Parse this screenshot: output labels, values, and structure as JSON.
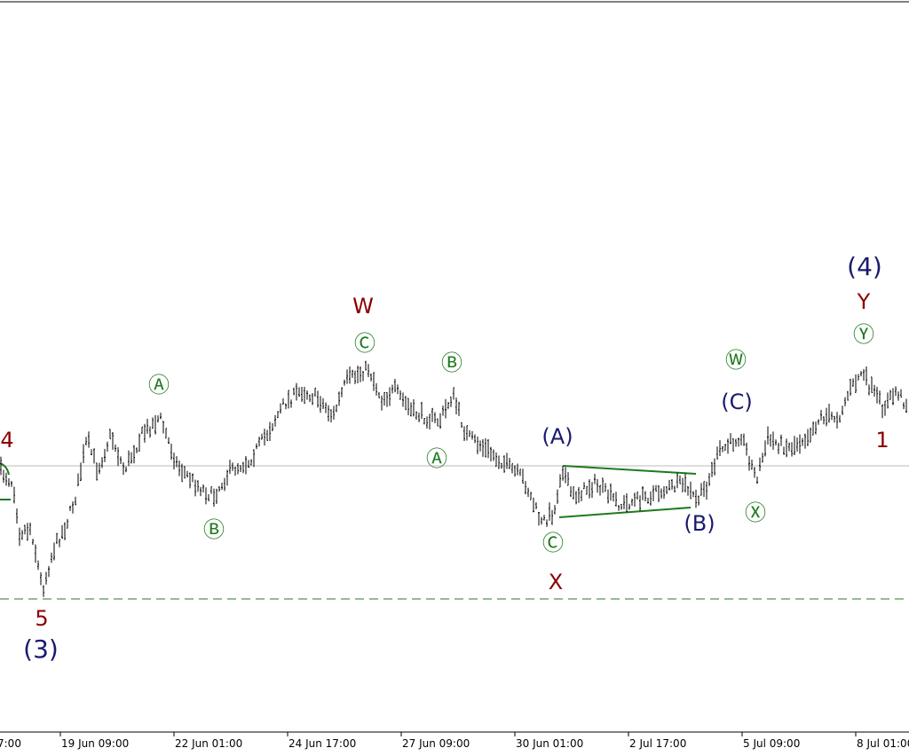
{
  "x_axis": {
    "ticks": [
      "7:00",
      "19 Jun 09:00",
      "22 Jun 01:00",
      "24 Jun 17:00",
      "27 Jun 09:00",
      "30 Jun 01:00",
      "2 Jul 17:00",
      "5 Jul 09:00",
      "8 Jul 01:00"
    ]
  },
  "wave_labels": [
    "4",
    "5",
    "(3)",
    "Ⓐ",
    "Ⓑ",
    "W",
    "Ⓒ",
    "Ⓑ",
    "Ⓐ",
    "(A)",
    "Ⓒ",
    "X",
    "(B)",
    "Ⓦ",
    "(C)",
    "Ⓧ",
    "(4)",
    "Y",
    "Ⓨ",
    "1"
  ]
}
